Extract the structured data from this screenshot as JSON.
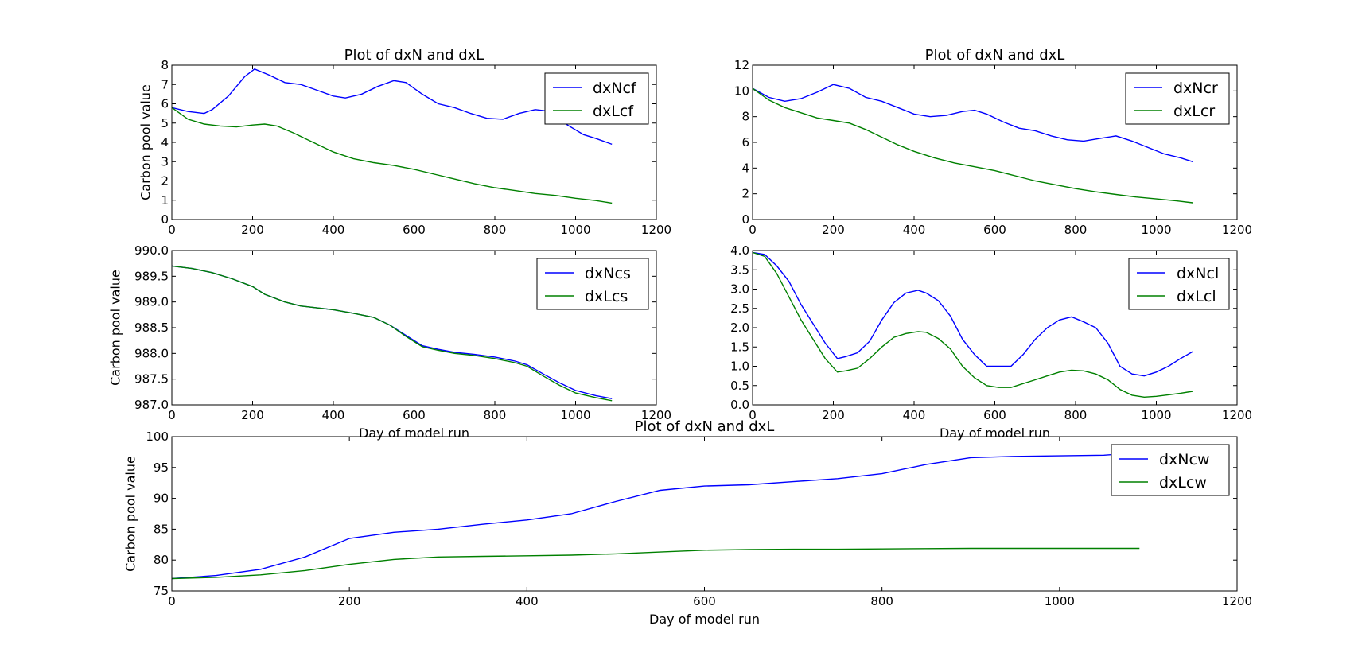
{
  "chart_data": [
    {
      "type": "line",
      "title": "Plot of dxN and dxL",
      "xlabel": "",
      "ylabel": "Carbon pool value",
      "xlim": [
        0,
        1200
      ],
      "ylim": [
        0,
        8
      ],
      "xticks": [
        0,
        200,
        400,
        600,
        800,
        1000,
        1200
      ],
      "yticks": [
        0,
        1,
        2,
        3,
        4,
        5,
        6,
        7,
        8
      ],
      "ytick_labels": [
        "0",
        "1",
        "2",
        "3",
        "4",
        "5",
        "6",
        "7",
        "8"
      ],
      "grid": false,
      "legend": "top-right",
      "series": [
        {
          "name": "dxNcf",
          "color": "#0000ff",
          "x": [
            0,
            40,
            80,
            100,
            140,
            180,
            205,
            240,
            280,
            320,
            360,
            400,
            430,
            470,
            510,
            550,
            580,
            620,
            660,
            700,
            740,
            780,
            820,
            860,
            900,
            940,
            980,
            1020,
            1050,
            1090
          ],
          "y": [
            5.8,
            5.6,
            5.5,
            5.7,
            6.4,
            7.4,
            7.8,
            7.5,
            7.1,
            7.0,
            6.7,
            6.4,
            6.3,
            6.5,
            6.9,
            7.2,
            7.1,
            6.5,
            6.0,
            5.8,
            5.5,
            5.25,
            5.2,
            5.5,
            5.7,
            5.6,
            4.9,
            4.4,
            4.2,
            3.9
          ]
        },
        {
          "name": "dxLcf",
          "color": "#008000",
          "x": [
            0,
            40,
            80,
            120,
            160,
            200,
            230,
            260,
            300,
            350,
            400,
            450,
            500,
            550,
            600,
            650,
            700,
            750,
            800,
            850,
            900,
            950,
            1000,
            1050,
            1090
          ],
          "y": [
            5.8,
            5.2,
            4.95,
            4.85,
            4.8,
            4.9,
            4.95,
            4.85,
            4.5,
            4.0,
            3.5,
            3.15,
            2.95,
            2.8,
            2.6,
            2.35,
            2.1,
            1.85,
            1.65,
            1.5,
            1.35,
            1.25,
            1.1,
            0.98,
            0.85
          ]
        }
      ]
    },
    {
      "type": "line",
      "title": "Plot of dxN and dxL",
      "xlabel": "",
      "ylabel": "",
      "xlim": [
        0,
        1200
      ],
      "ylim": [
        0,
        12
      ],
      "xticks": [
        0,
        200,
        400,
        600,
        800,
        1000,
        1200
      ],
      "yticks": [
        0,
        2,
        4,
        6,
        8,
        10,
        12
      ],
      "ytick_labels": [
        "0",
        "2",
        "4",
        "6",
        "8",
        "10",
        "12"
      ],
      "grid": false,
      "legend": "top-right",
      "series": [
        {
          "name": "dxNcr",
          "color": "#0000ff",
          "x": [
            0,
            40,
            80,
            120,
            160,
            200,
            240,
            280,
            320,
            360,
            400,
            440,
            480,
            520,
            550,
            580,
            620,
            660,
            700,
            740,
            780,
            820,
            860,
            900,
            940,
            980,
            1020,
            1060,
            1090
          ],
          "y": [
            10.2,
            9.5,
            9.2,
            9.4,
            9.9,
            10.5,
            10.2,
            9.5,
            9.2,
            8.7,
            8.2,
            8.0,
            8.1,
            8.4,
            8.5,
            8.2,
            7.6,
            7.1,
            6.9,
            6.5,
            6.2,
            6.1,
            6.3,
            6.5,
            6.1,
            5.6,
            5.1,
            4.8,
            4.5
          ]
        },
        {
          "name": "dxLcr",
          "color": "#008000",
          "x": [
            0,
            40,
            80,
            120,
            160,
            200,
            240,
            280,
            320,
            360,
            400,
            450,
            500,
            550,
            600,
            650,
            700,
            750,
            800,
            850,
            900,
            950,
            1000,
            1050,
            1090
          ],
          "y": [
            10.2,
            9.3,
            8.7,
            8.3,
            7.9,
            7.7,
            7.5,
            7.0,
            6.4,
            5.8,
            5.3,
            4.8,
            4.4,
            4.1,
            3.8,
            3.4,
            3.0,
            2.7,
            2.4,
            2.15,
            1.95,
            1.75,
            1.6,
            1.45,
            1.3
          ]
        }
      ]
    },
    {
      "type": "line",
      "title": "",
      "xlabel": "Day of model run",
      "ylabel": "Carbon pool value",
      "xlim": [
        0,
        1200
      ],
      "ylim": [
        987.0,
        990.0
      ],
      "xticks": [
        0,
        200,
        400,
        600,
        800,
        1000,
        1200
      ],
      "yticks": [
        987.0,
        987.5,
        988.0,
        988.5,
        989.0,
        989.5,
        990.0
      ],
      "ytick_labels": [
        "987.0",
        "987.5",
        "988.0",
        "988.5",
        "989.0",
        "989.5",
        "990.0"
      ],
      "grid": false,
      "legend": "top-right",
      "series": [
        {
          "name": "dxNcs",
          "color": "#0000ff",
          "x": [
            0,
            50,
            100,
            150,
            200,
            230,
            280,
            320,
            400,
            450,
            500,
            540,
            580,
            620,
            660,
            700,
            750,
            800,
            850,
            880,
            920,
            960,
            1000,
            1050,
            1090
          ],
          "y": [
            989.7,
            989.65,
            989.57,
            989.45,
            989.3,
            989.15,
            989.0,
            988.92,
            988.85,
            988.78,
            988.7,
            988.55,
            988.35,
            988.15,
            988.08,
            988.02,
            987.98,
            987.93,
            987.85,
            987.78,
            987.6,
            987.43,
            987.28,
            987.18,
            987.12
          ]
        },
        {
          "name": "dxLcs",
          "color": "#008000",
          "x": [
            0,
            50,
            100,
            150,
            200,
            230,
            280,
            320,
            400,
            450,
            500,
            540,
            580,
            620,
            660,
            700,
            750,
            800,
            850,
            880,
            920,
            960,
            1000,
            1050,
            1090
          ],
          "y": [
            989.7,
            989.65,
            989.57,
            989.45,
            989.3,
            989.15,
            989.0,
            988.92,
            988.85,
            988.78,
            988.7,
            988.55,
            988.33,
            988.13,
            988.06,
            988.0,
            987.96,
            987.9,
            987.82,
            987.75,
            987.56,
            987.38,
            987.23,
            987.14,
            987.08
          ]
        }
      ]
    },
    {
      "type": "line",
      "title": "",
      "xlabel": "Day of model run",
      "ylabel": "",
      "xlim": [
        0,
        1200
      ],
      "ylim": [
        0.0,
        4.0
      ],
      "xticks": [
        0,
        200,
        400,
        600,
        800,
        1000,
        1200
      ],
      "yticks": [
        0.0,
        0.5,
        1.0,
        1.5,
        2.0,
        2.5,
        3.0,
        3.5,
        4.0
      ],
      "ytick_labels": [
        "0.0",
        "0.5",
        "1.0",
        "1.5",
        "2.0",
        "2.5",
        "3.0",
        "3.5",
        "4.0"
      ],
      "grid": false,
      "legend": "top-right",
      "series": [
        {
          "name": "dxNcl",
          "color": "#0000ff",
          "x": [
            0,
            30,
            60,
            90,
            120,
            150,
            180,
            210,
            230,
            260,
            290,
            320,
            350,
            380,
            410,
            430,
            460,
            490,
            520,
            550,
            580,
            610,
            640,
            670,
            700,
            730,
            760,
            790,
            820,
            850,
            880,
            910,
            940,
            970,
            1000,
            1030,
            1060,
            1090
          ],
          "y": [
            3.95,
            3.9,
            3.6,
            3.2,
            2.6,
            2.1,
            1.6,
            1.2,
            1.25,
            1.35,
            1.65,
            2.2,
            2.65,
            2.9,
            2.97,
            2.9,
            2.7,
            2.3,
            1.7,
            1.3,
            1.0,
            1.0,
            1.0,
            1.3,
            1.7,
            2.0,
            2.2,
            2.28,
            2.15,
            2.0,
            1.6,
            1.0,
            0.8,
            0.75,
            0.85,
            1.0,
            1.2,
            1.38
          ]
        },
        {
          "name": "dxLcl",
          "color": "#008000",
          "x": [
            0,
            30,
            60,
            90,
            120,
            150,
            180,
            210,
            230,
            260,
            290,
            320,
            350,
            380,
            410,
            430,
            460,
            490,
            520,
            550,
            580,
            610,
            640,
            670,
            700,
            730,
            760,
            790,
            820,
            850,
            880,
            910,
            940,
            970,
            1000,
            1030,
            1060,
            1090
          ],
          "y": [
            3.95,
            3.85,
            3.4,
            2.8,
            2.2,
            1.7,
            1.2,
            0.85,
            0.88,
            0.95,
            1.2,
            1.5,
            1.75,
            1.85,
            1.9,
            1.88,
            1.72,
            1.45,
            1.0,
            0.7,
            0.5,
            0.45,
            0.45,
            0.55,
            0.65,
            0.75,
            0.85,
            0.9,
            0.88,
            0.8,
            0.65,
            0.4,
            0.25,
            0.2,
            0.22,
            0.26,
            0.3,
            0.35
          ]
        }
      ]
    },
    {
      "type": "line",
      "title": "Plot of dxN and dxL",
      "xlabel": "Day of model run",
      "ylabel": "Carbon pool value",
      "xlim": [
        0,
        1200
      ],
      "ylim": [
        75,
        100
      ],
      "xticks": [
        0,
        200,
        400,
        600,
        800,
        1000,
        1200
      ],
      "yticks": [
        75,
        80,
        85,
        90,
        95,
        100
      ],
      "ytick_labels": [
        "75",
        "80",
        "85",
        "90",
        "95",
        "100"
      ],
      "grid": false,
      "legend": "top-right",
      "series": [
        {
          "name": "dxNcw",
          "color": "#0000ff",
          "x": [
            0,
            50,
            100,
            150,
            200,
            250,
            300,
            350,
            400,
            450,
            500,
            550,
            600,
            650,
            700,
            750,
            800,
            850,
            900,
            950,
            1000,
            1050,
            1090
          ],
          "y": [
            77.0,
            77.5,
            78.5,
            80.5,
            83.5,
            84.5,
            85.0,
            85.8,
            86.5,
            87.5,
            89.5,
            91.3,
            92.0,
            92.2,
            92.7,
            93.2,
            94.0,
            95.5,
            96.6,
            96.8,
            96.9,
            97.0,
            97.4
          ]
        },
        {
          "name": "dxLcw",
          "color": "#008000",
          "x": [
            0,
            50,
            100,
            150,
            200,
            250,
            300,
            350,
            400,
            450,
            500,
            550,
            600,
            650,
            700,
            750,
            800,
            850,
            900,
            950,
            1000,
            1050,
            1090
          ],
          "y": [
            77.0,
            77.2,
            77.6,
            78.3,
            79.3,
            80.1,
            80.5,
            80.6,
            80.7,
            80.8,
            81.0,
            81.3,
            81.6,
            81.7,
            81.75,
            81.75,
            81.8,
            81.85,
            81.9,
            81.9,
            81.9,
            81.9,
            81.9
          ]
        }
      ]
    }
  ]
}
